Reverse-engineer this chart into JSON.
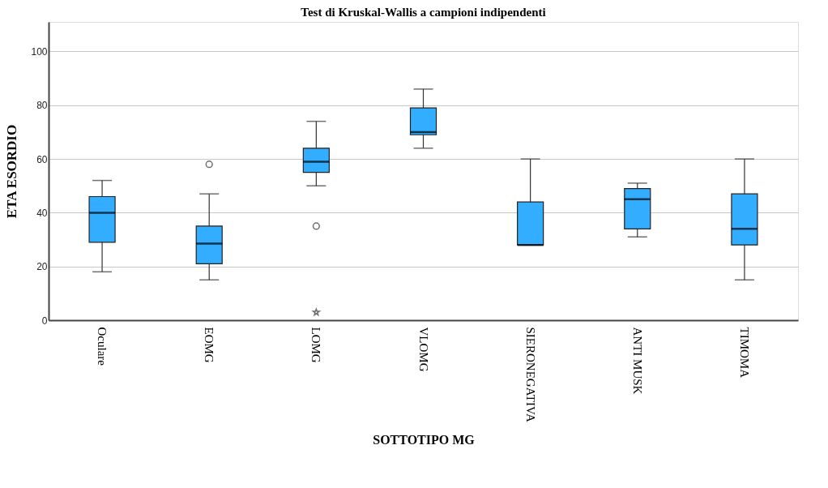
{
  "chart_data": {
    "type": "box",
    "title": "Test di Kruskal-Wallis a campioni indipendenti",
    "xlabel": "SOTTOTIPO MG",
    "ylabel": "ETA ESORDIO",
    "categories": [
      "Oculare",
      "EOMG",
      "LOMG",
      "VLOMG",
      "SIERONEGATIVA",
      "ANTI MUSK",
      "TIMOMA"
    ],
    "ylim": [
      0,
      111
    ],
    "yticks": [
      0,
      20,
      40,
      60,
      80,
      100
    ],
    "grid": "y",
    "series": [
      {
        "color": "#33adff",
        "boxes": [
          {
            "low": 18,
            "q1": 29,
            "median": 40,
            "q3": 46,
            "high": 52
          },
          {
            "low": 15,
            "q1": 21,
            "median": 28.5,
            "q3": 35,
            "high": 47,
            "outliers": [
              58
            ]
          },
          {
            "low": 50,
            "q1": 55,
            "median": 59,
            "q3": 64,
            "high": 74,
            "outliers": [
              35,
              3
            ]
          },
          {
            "low": 64,
            "q1": 69,
            "median": 70,
            "q3": 79,
            "high": 86
          },
          {
            "low": 28,
            "q1": 28,
            "median": 28,
            "q3": 44,
            "high": 60
          },
          {
            "low": 31,
            "q1": 34,
            "median": 45,
            "q3": 49,
            "high": 51
          },
          {
            "low": 15,
            "q1": 28,
            "median": 34,
            "q3": 47,
            "high": 60
          }
        ]
      }
    ]
  }
}
